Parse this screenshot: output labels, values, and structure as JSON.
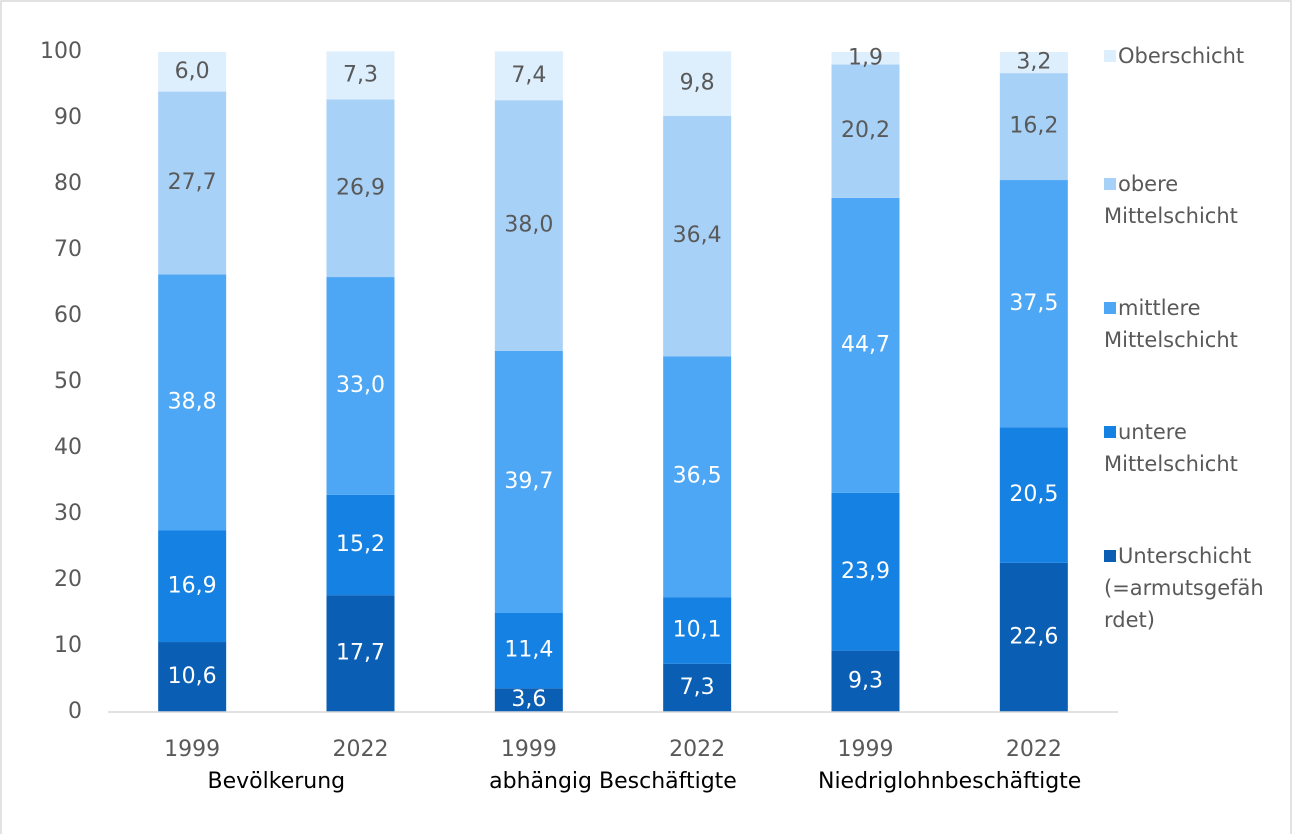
{
  "chart_data": {
    "type": "stacked_bar",
    "categories": [
      "1999",
      "2022",
      "1999",
      "2022",
      "1999",
      "2022"
    ],
    "groups": [
      "Bevölkerung",
      "abhängig Beschäftigte",
      "Niedriglohnbeschäftigte"
    ],
    "ylim": [
      0,
      100
    ],
    "yticks": [
      0,
      10,
      20,
      30,
      40,
      50,
      60,
      70,
      80,
      90,
      100
    ],
    "grid": false,
    "legend": "right",
    "series": [
      {
        "name": "Unterschicht (=armutsgefährdet)",
        "color": "#0a5fb5",
        "label_color": "#ffffff",
        "values": [
          10.6,
          17.7,
          3.6,
          7.3,
          9.3,
          22.6
        ],
        "value_labels": [
          "10,6",
          "17,7",
          "3,6",
          "7,3",
          "9,3",
          "22,6"
        ]
      },
      {
        "name": "untere Mittelschicht",
        "color": "#1581e2",
        "label_color": "#ffffff",
        "values": [
          16.9,
          15.2,
          11.4,
          10.1,
          23.9,
          20.5
        ],
        "value_labels": [
          "16,9",
          "15,2",
          "11,4",
          "10,1",
          "23,9",
          "20,5"
        ]
      },
      {
        "name": "mittlere Mittelschicht",
        "color": "#4ea7f5",
        "label_color": "#ffffff",
        "values": [
          38.8,
          33.0,
          39.7,
          36.5,
          44.7,
          37.5
        ],
        "value_labels": [
          "38,8",
          "33,0",
          "39,7",
          "36,5",
          "44,7",
          "37,5"
        ]
      },
      {
        "name": "obere Mittelschicht",
        "color": "#a8d1f8",
        "label_color": "#595959",
        "values": [
          27.7,
          26.9,
          38.0,
          36.4,
          20.2,
          16.2
        ],
        "value_labels": [
          "27,7",
          "26,9",
          "38,0",
          "36,4",
          "20,2",
          "16,2"
        ]
      },
      {
        "name": "Oberschicht",
        "color": "#ddeefd",
        "label_color": "#595959",
        "values": [
          6.0,
          7.3,
          7.4,
          9.8,
          1.9,
          3.2
        ],
        "value_labels": [
          "6,0",
          "7,3",
          "7,4",
          "9,8",
          "1,9",
          "3,2"
        ]
      }
    ]
  }
}
